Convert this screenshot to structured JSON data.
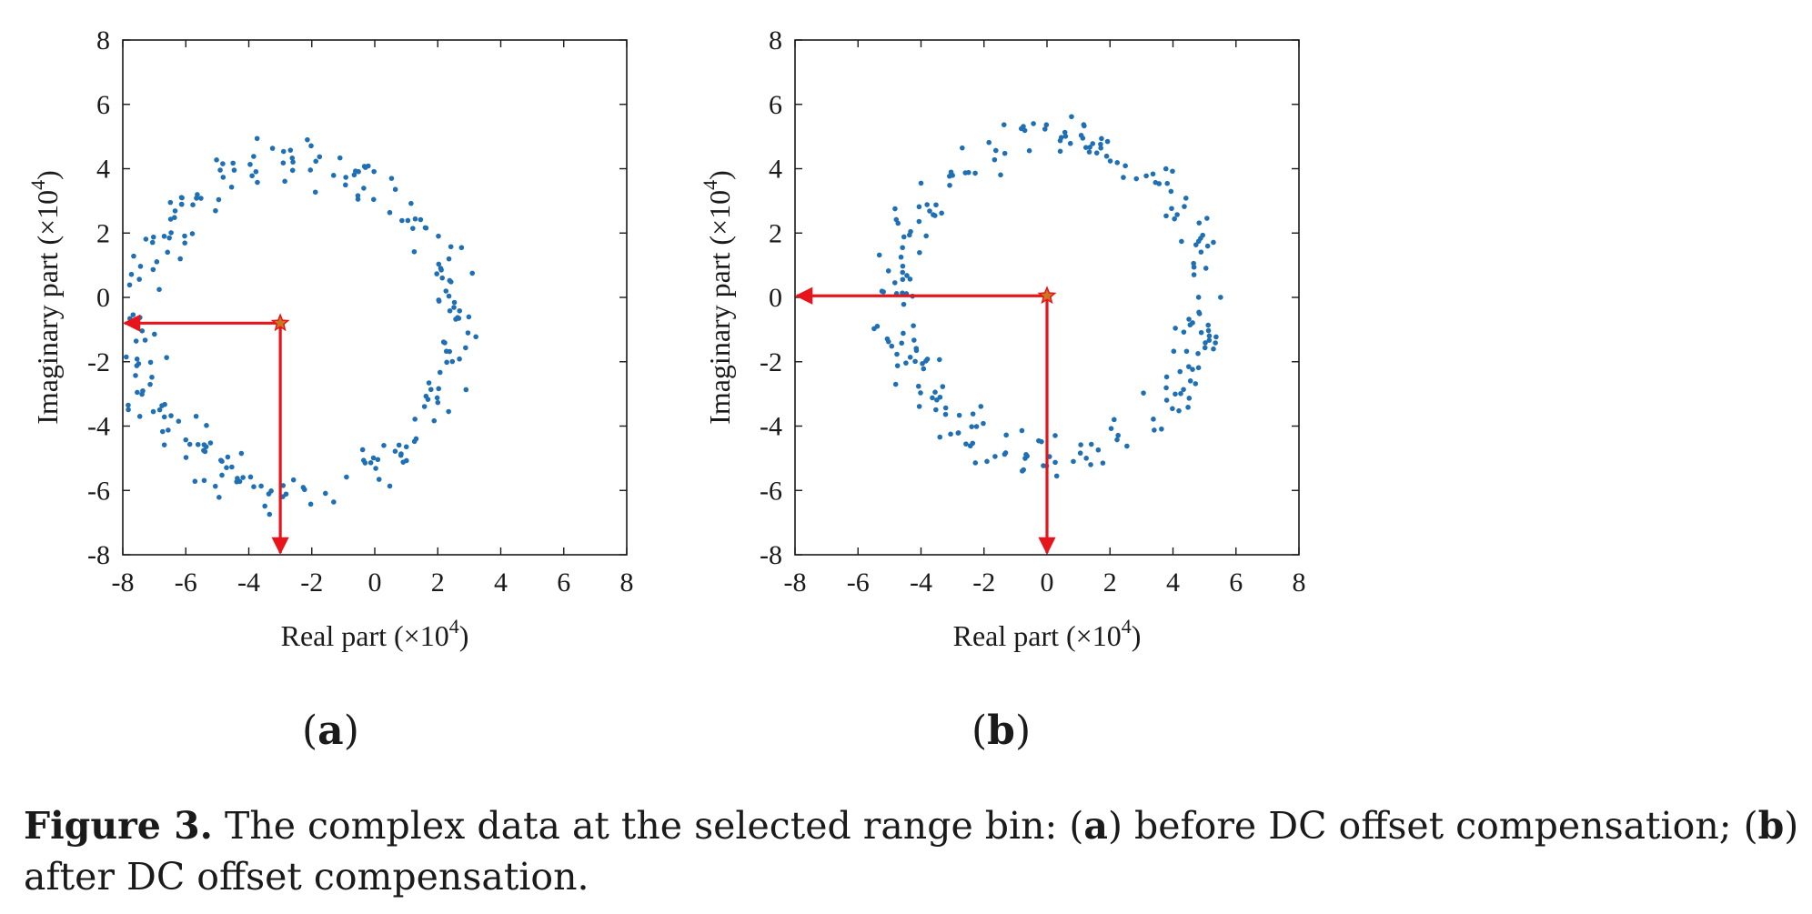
{
  "colors": {
    "points": "#1f6fb4",
    "arrow": "#e8141c",
    "star": "#e8141c",
    "star_fill": "#c8781e",
    "axis": "#1a1a1a"
  },
  "panel_labels": {
    "a": "a",
    "b": "b"
  },
  "caption": {
    "label": "Figure 3.",
    "pre": " The complex data at the selected range bin: (",
    "a": "a",
    "mid": ") before DC offset compensation; (",
    "b": "b",
    "post": ") after DC offset compensation."
  },
  "chart_data": [
    {
      "id": "a",
      "type": "scatter",
      "xlabel": "Real part (×10",
      "xlabel_sup": "4",
      "xlabel_end": ")",
      "ylabel": "Imaginary part (×10",
      "ylabel_sup": "4",
      "ylabel_end": ")",
      "xlim": [
        -8,
        8
      ],
      "ylim": [
        -8,
        8
      ],
      "ticks": [
        -8,
        -6,
        -4,
        -2,
        0,
        2,
        4,
        6,
        8
      ],
      "grid": false,
      "center": [
        -3,
        -0.8
      ],
      "ring": {
        "cx": -2.55,
        "cy": -0.9,
        "r": 5.1,
        "spread": 0.75,
        "n": 230,
        "seed": 7
      }
    },
    {
      "id": "b",
      "type": "scatter",
      "xlabel": "Real part (×10",
      "xlabel_sup": "4",
      "xlabel_end": ")",
      "ylabel": "Imaginary part (×10",
      "ylabel_sup": "4",
      "ylabel_end": ")",
      "xlim": [
        -8,
        8
      ],
      "ylim": [
        -8,
        8
      ],
      "ticks": [
        -8,
        -6,
        -4,
        -2,
        0,
        2,
        4,
        6,
        8
      ],
      "grid": false,
      "center": [
        0,
        0.05
      ],
      "ring": {
        "cx": 0.15,
        "cy": 0.05,
        "r": 4.95,
        "spread": 0.7,
        "n": 230,
        "seed": 13
      }
    }
  ]
}
